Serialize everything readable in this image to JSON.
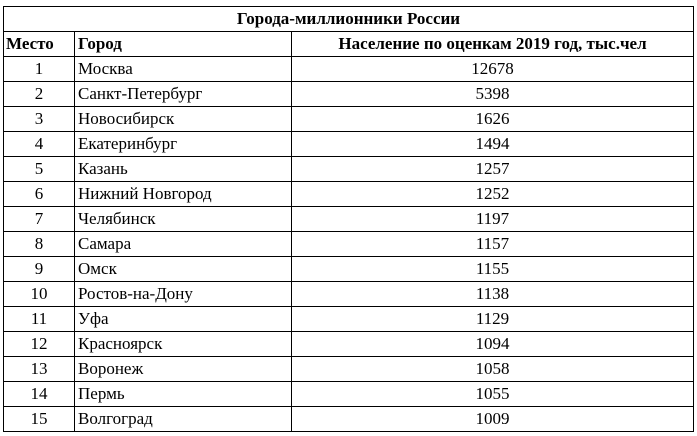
{
  "title": "Города-миллионники России",
  "headers": {
    "rank": "Место",
    "city": "Город",
    "population": "Население по оценкам 2019 год, тыс.чел"
  },
  "rows": [
    {
      "rank": "1",
      "city": "Москва",
      "population": "12678"
    },
    {
      "rank": "2",
      "city": "Санкт-Петербург",
      "population": "5398"
    },
    {
      "rank": "3",
      "city": "Новосибирск",
      "population": "1626"
    },
    {
      "rank": "4",
      "city": "Екатеринбург",
      "population": "1494"
    },
    {
      "rank": "5",
      "city": "Казань",
      "population": "1257"
    },
    {
      "rank": "6",
      "city": "Нижний Новгород",
      "population": "1252"
    },
    {
      "rank": "7",
      "city": "Челябинск",
      "population": "1197"
    },
    {
      "rank": "8",
      "city": "Самара",
      "population": "1157"
    },
    {
      "rank": "9",
      "city": "Омск",
      "population": "1155"
    },
    {
      "rank": "10",
      "city": "Ростов-на-Дону",
      "population": "1138"
    },
    {
      "rank": "11",
      "city": "Уфа",
      "population": "1129"
    },
    {
      "rank": "12",
      "city": "Красноярск",
      "population": "1094"
    },
    {
      "rank": "13",
      "city": "Воронеж",
      "population": "1058"
    },
    {
      "rank": "14",
      "city": "Пермь",
      "population": "1055"
    },
    {
      "rank": "15",
      "city": "Волгоград",
      "population": "1009"
    }
  ]
}
